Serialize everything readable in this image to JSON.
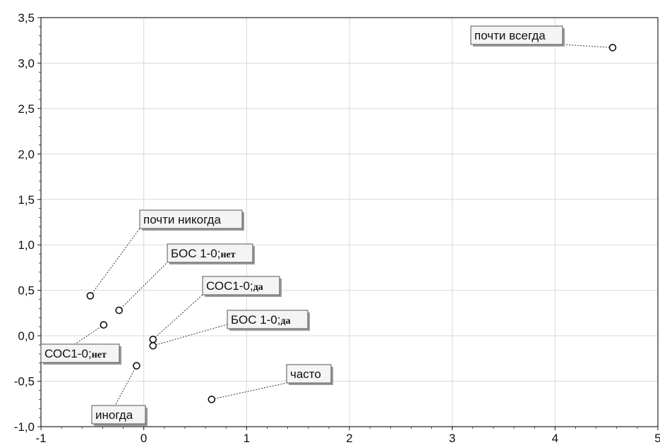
{
  "chart_data": {
    "type": "scatter",
    "title": "",
    "xlabel": "",
    "ylabel": "",
    "xlim": [
      -1,
      5
    ],
    "ylim": [
      -1,
      3.5
    ],
    "x_ticks": [
      "-1",
      "0",
      "1",
      "2",
      "3",
      "4",
      "5"
    ],
    "y_ticks": [
      "3,5",
      "3,0",
      "2,5",
      "2,0",
      "1,5",
      "1,0",
      "0,5",
      "0,0",
      "-0,5",
      "-1,0"
    ],
    "grid": true,
    "points": [
      {
        "x": 4.56,
        "y": 3.17,
        "label": "почти всегда"
      },
      {
        "x": -0.52,
        "y": 0.44,
        "label": "почти никогда"
      },
      {
        "x": -0.24,
        "y": 0.28,
        "label": "БОС 1-0;",
        "label_suffix": "нет"
      },
      {
        "x": 0.09,
        "y": -0.04,
        "label": "СОС1-0;",
        "label_suffix": "да"
      },
      {
        "x": 0.09,
        "y": -0.11,
        "label": "БОС 1-0;",
        "label_suffix": "да"
      },
      {
        "x": -0.39,
        "y": 0.12,
        "label": "СОС1-0;",
        "label_suffix": "нет"
      },
      {
        "x": -0.07,
        "y": -0.33,
        "label": "иногда"
      },
      {
        "x": 0.66,
        "y": -0.7,
        "label": "часто"
      }
    ]
  }
}
